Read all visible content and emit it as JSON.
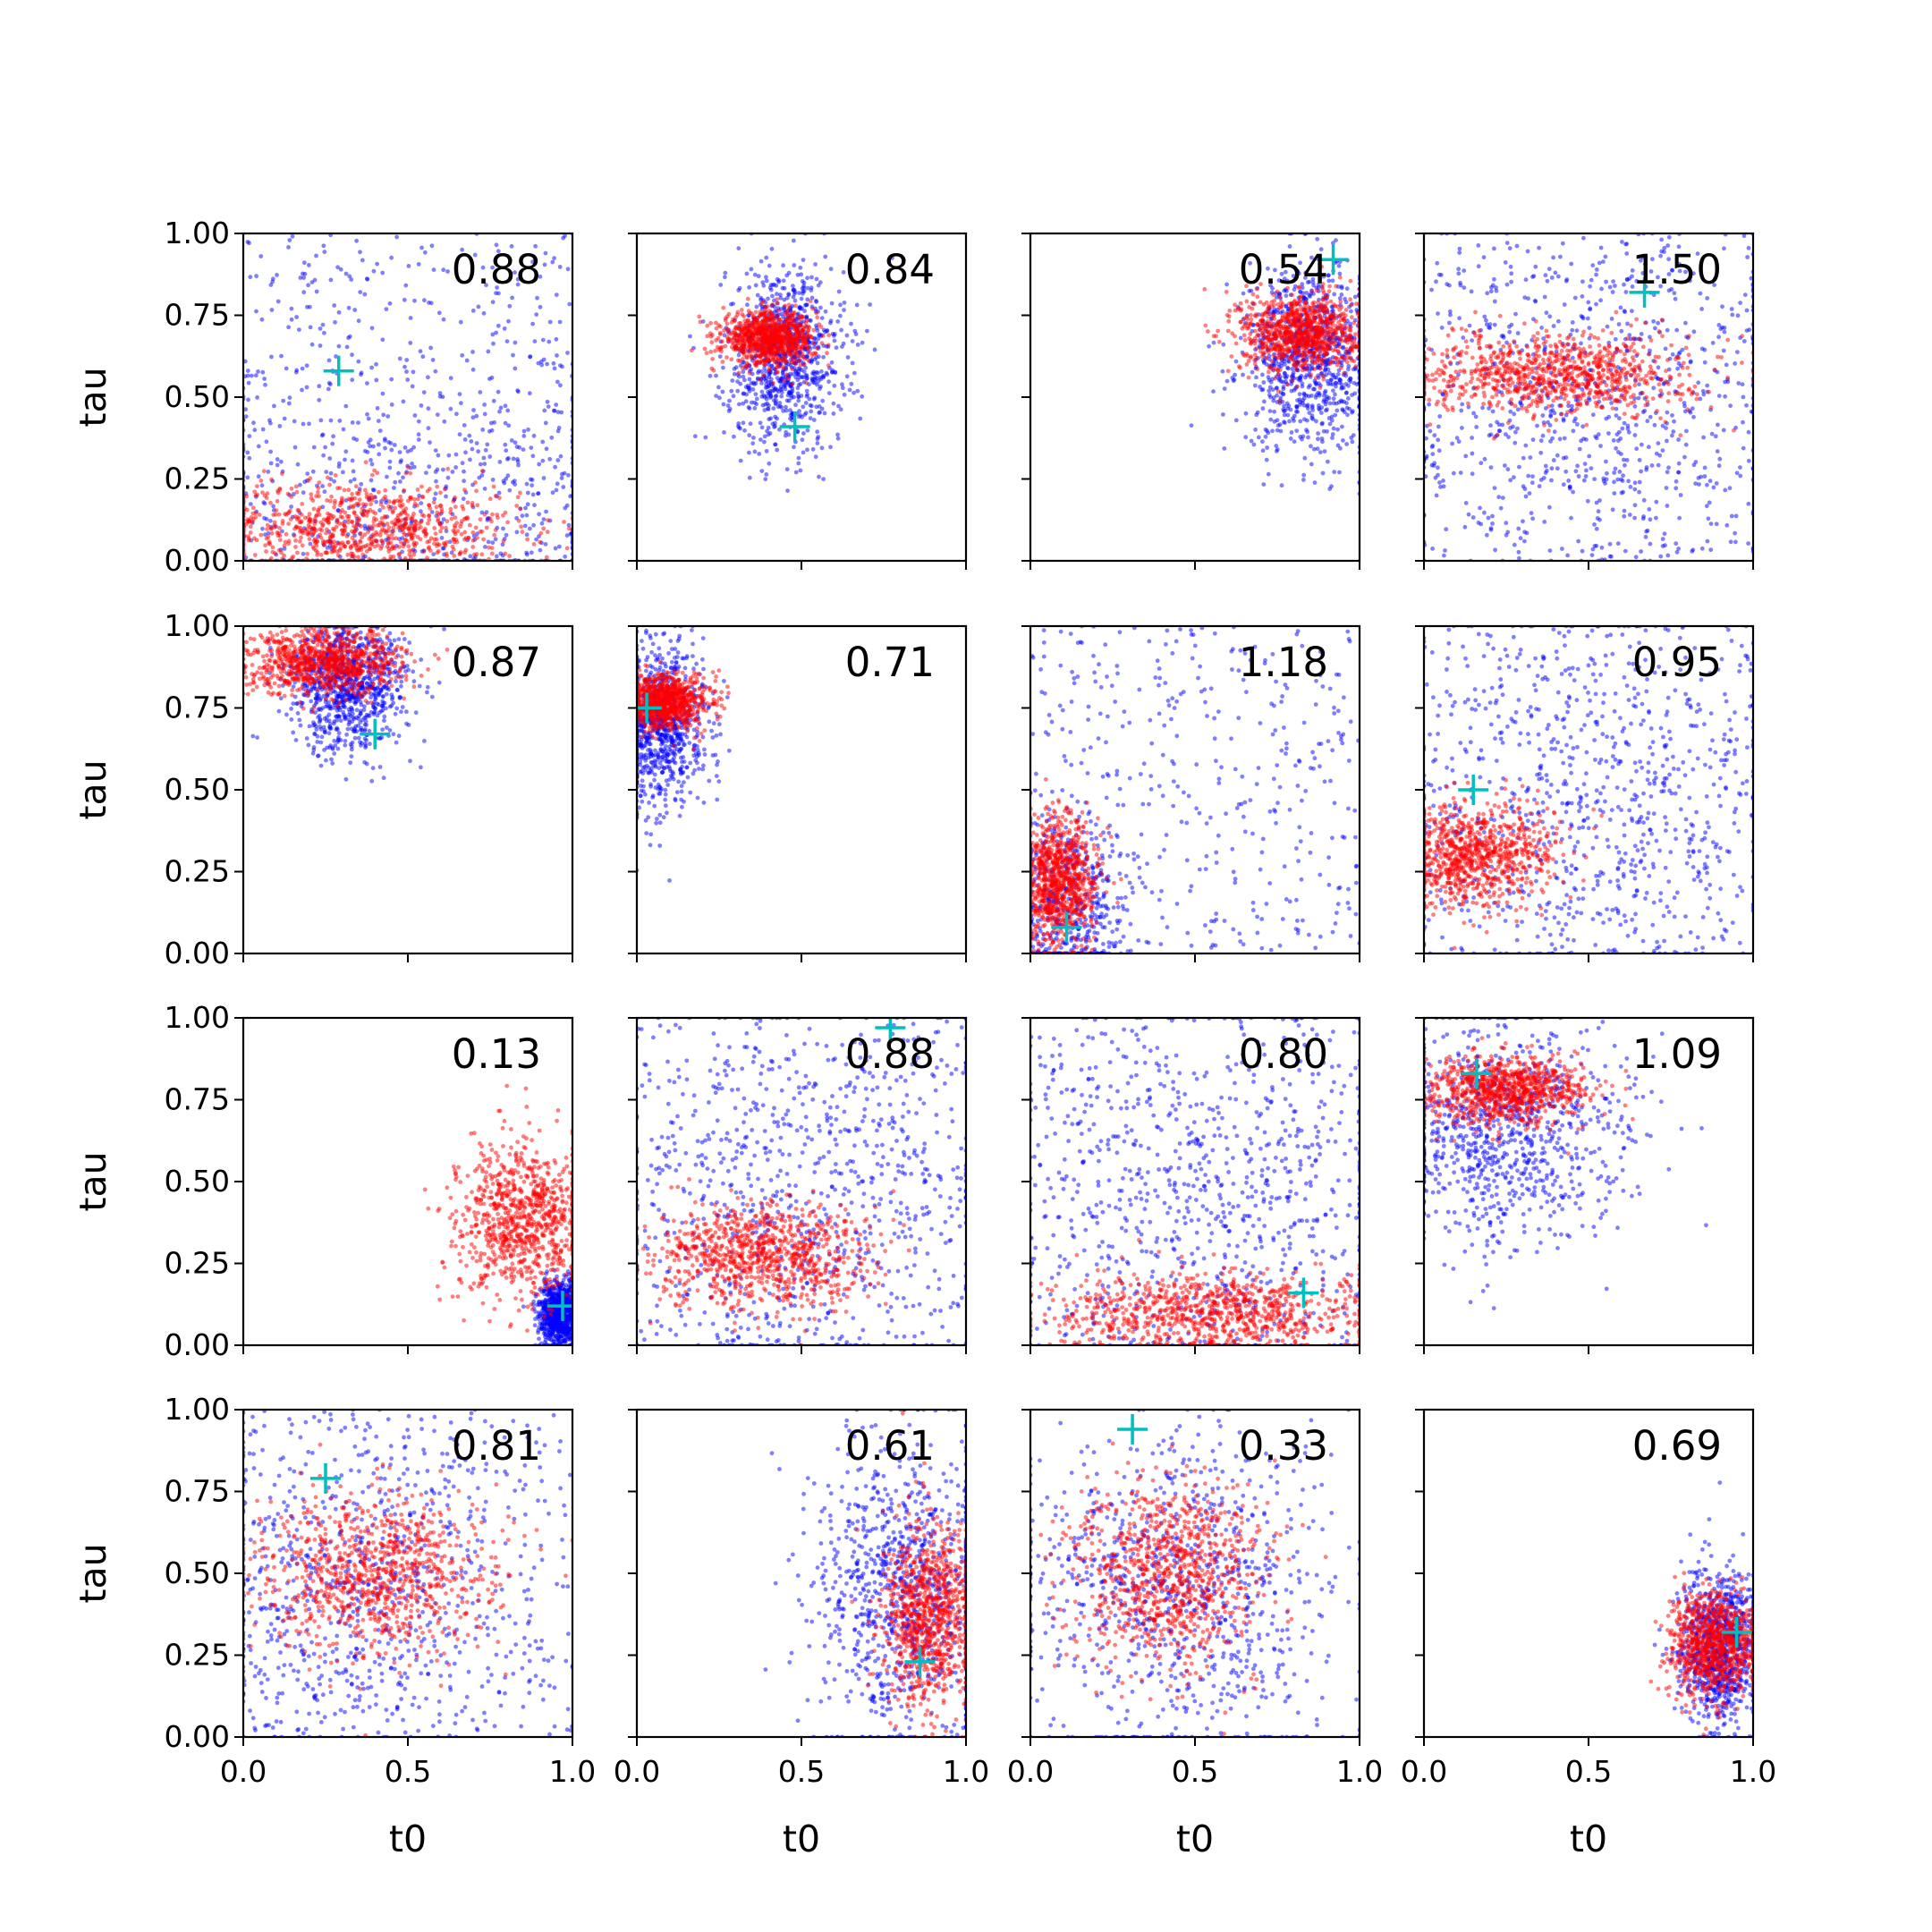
{
  "colors": {
    "posterior": "#ff0000",
    "prior": "#0000ff",
    "truth": "#00bfbf",
    "axes": "#000000",
    "background": "#ffffff"
  },
  "chart_data": {
    "type": "scatter",
    "grid": false,
    "rows": 4,
    "cols": 4,
    "xlabel": "t0",
    "ylabel": "tau",
    "xlim": [
      0,
      1
    ],
    "ylim": [
      0,
      1
    ],
    "xticks": [
      "0.0",
      "0.5",
      "1.0"
    ],
    "yticks": [
      "0.00",
      "0.25",
      "0.50",
      "0.75",
      "1.00"
    ],
    "panels": [
      {
        "value": "0.88",
        "truth": [
          0.29,
          0.58
        ],
        "red": {
          "cx": 0.35,
          "cy": 0.1,
          "sx": 0.25,
          "sy": 0.07
        },
        "blue": {
          "cx": 0.5,
          "cy": 0.15,
          "sx": 0.35,
          "sy": 0.25,
          "spread": "wide"
        }
      },
      {
        "value": "0.84",
        "truth": [
          0.48,
          0.41
        ],
        "red": {
          "cx": 0.4,
          "cy": 0.68,
          "sx": 0.07,
          "sy": 0.04
        },
        "blue": {
          "cx": 0.45,
          "cy": 0.62,
          "sx": 0.09,
          "sy": 0.14
        }
      },
      {
        "value": "0.54",
        "truth": [
          0.92,
          0.92
        ],
        "red": {
          "cx": 0.82,
          "cy": 0.7,
          "sx": 0.09,
          "sy": 0.06
        },
        "blue": {
          "cx": 0.85,
          "cy": 0.62,
          "sx": 0.1,
          "sy": 0.14
        }
      },
      {
        "value": "1.50",
        "truth": [
          0.67,
          0.82
        ],
        "red": {
          "cx": 0.4,
          "cy": 0.57,
          "sx": 0.2,
          "sy": 0.06
        },
        "blue": {
          "cx": 0.5,
          "cy": 0.5,
          "sx": 0.3,
          "sy": 0.25,
          "spread": "wide"
        }
      },
      {
        "value": "0.87",
        "truth": [
          0.4,
          0.67
        ],
        "red": {
          "cx": 0.25,
          "cy": 0.89,
          "sx": 0.12,
          "sy": 0.05
        },
        "blue": {
          "cx": 0.32,
          "cy": 0.82,
          "sx": 0.09,
          "sy": 0.1
        }
      },
      {
        "value": "0.71",
        "truth": [
          0.03,
          0.75
        ],
        "red": {
          "cx": 0.08,
          "cy": 0.77,
          "sx": 0.07,
          "sy": 0.04
        },
        "blue": {
          "cx": 0.07,
          "cy": 0.7,
          "sx": 0.07,
          "sy": 0.12
        }
      },
      {
        "value": "1.18",
        "truth": [
          0.11,
          0.08
        ],
        "red": {
          "cx": 0.08,
          "cy": 0.22,
          "sx": 0.06,
          "sy": 0.1
        },
        "blue": {
          "cx": 0.1,
          "cy": 0.15,
          "sx": 0.1,
          "sy": 0.15,
          "spread": "wide"
        }
      },
      {
        "value": "0.95",
        "truth": [
          0.15,
          0.5
        ],
        "red": {
          "cx": 0.15,
          "cy": 0.3,
          "sx": 0.12,
          "sy": 0.08
        },
        "blue": {
          "cx": 0.5,
          "cy": 0.45,
          "sx": 0.3,
          "sy": 0.3,
          "spread": "wide"
        }
      },
      {
        "value": "0.13",
        "truth": [
          0.97,
          0.12
        ],
        "red": {
          "cx": 0.85,
          "cy": 0.38,
          "sx": 0.1,
          "sy": 0.12
        },
        "blue": {
          "cx": 0.96,
          "cy": 0.1,
          "sx": 0.03,
          "sy": 0.05
        }
      },
      {
        "value": "0.88",
        "truth": [
          0.77,
          0.97
        ],
        "red": {
          "cx": 0.38,
          "cy": 0.27,
          "sx": 0.16,
          "sy": 0.08
        },
        "blue": {
          "cx": 0.5,
          "cy": 0.45,
          "sx": 0.3,
          "sy": 0.3,
          "spread": "wide"
        }
      },
      {
        "value": "0.80",
        "truth": [
          0.83,
          0.16
        ],
        "red": {
          "cx": 0.55,
          "cy": 0.1,
          "sx": 0.25,
          "sy": 0.06
        },
        "blue": {
          "cx": 0.5,
          "cy": 0.45,
          "sx": 0.3,
          "sy": 0.3,
          "spread": "wide"
        }
      },
      {
        "value": "1.09",
        "truth": [
          0.16,
          0.83
        ],
        "red": {
          "cx": 0.25,
          "cy": 0.78,
          "sx": 0.12,
          "sy": 0.05
        },
        "blue": {
          "cx": 0.25,
          "cy": 0.65,
          "sx": 0.18,
          "sy": 0.18
        }
      },
      {
        "value": "0.81",
        "truth": [
          0.25,
          0.79
        ],
        "red": {
          "cx": 0.4,
          "cy": 0.5,
          "sx": 0.18,
          "sy": 0.12
        },
        "blue": {
          "cx": 0.3,
          "cy": 0.45,
          "sx": 0.25,
          "sy": 0.25,
          "spread": "wide"
        }
      },
      {
        "value": "0.61",
        "truth": [
          0.86,
          0.23
        ],
        "red": {
          "cx": 0.88,
          "cy": 0.38,
          "sx": 0.07,
          "sy": 0.14
        },
        "blue": {
          "cx": 0.8,
          "cy": 0.45,
          "sx": 0.14,
          "sy": 0.22
        }
      },
      {
        "value": "0.33",
        "truth": [
          0.31,
          0.94
        ],
        "red": {
          "cx": 0.42,
          "cy": 0.5,
          "sx": 0.15,
          "sy": 0.14
        },
        "blue": {
          "cx": 0.45,
          "cy": 0.45,
          "sx": 0.25,
          "sy": 0.25
        }
      },
      {
        "value": "0.69",
        "truth": [
          0.95,
          0.32
        ],
        "red": {
          "cx": 0.88,
          "cy": 0.28,
          "sx": 0.07,
          "sy": 0.08
        },
        "blue": {
          "cx": 0.9,
          "cy": 0.28,
          "sx": 0.06,
          "sy": 0.12
        }
      }
    ]
  }
}
